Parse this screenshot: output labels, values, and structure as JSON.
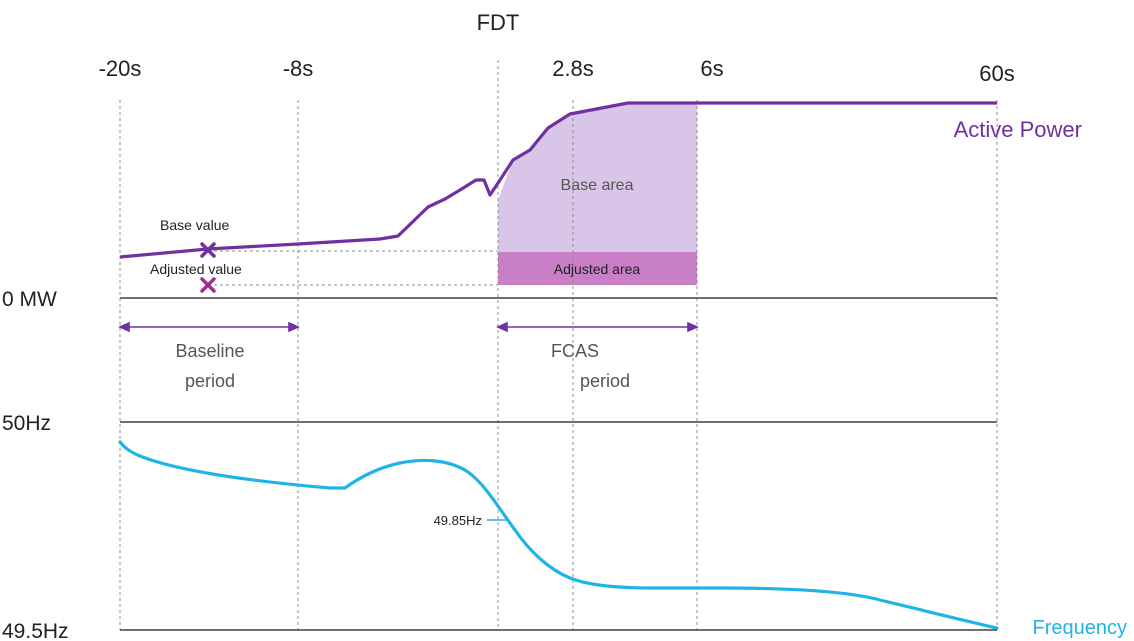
{
  "title": "FDT",
  "time_labels": [
    "-20s",
    "-8s",
    "2.8s",
    "6s",
    "60s"
  ],
  "power": {
    "series_name": "Active Power",
    "zero_label": "0 MW",
    "base_value_label": "Base value",
    "adjusted_value_label": "Adjusted value",
    "base_area_label": "Base area",
    "adjusted_area_label": "Adjusted area",
    "color": "#7030a0",
    "area_color": "#d9c5e8",
    "adjusted_area_color": "#c97fc5",
    "adjusted_marker_color": "#a03090"
  },
  "periods": {
    "baseline_line1": "Baseline",
    "baseline_line2": "period",
    "fcas_line1": "FCAS",
    "fcas_line2": "period"
  },
  "frequency": {
    "series_name": "Frequency",
    "top_label": "50Hz",
    "bottom_label": "49.5Hz",
    "callout_label": "49.85Hz",
    "color": "#1fb4e8"
  }
}
